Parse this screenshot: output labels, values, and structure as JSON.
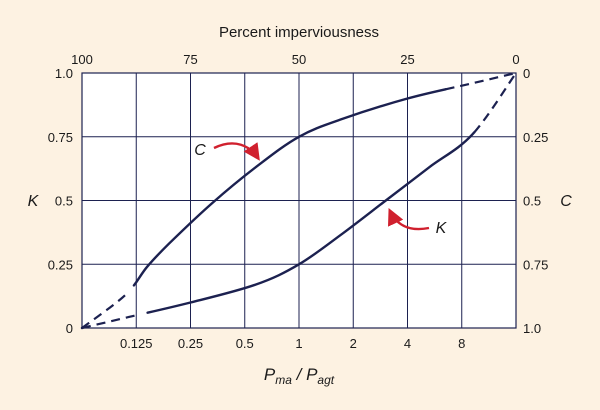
{
  "chart_data": {
    "type": "line",
    "top_axis_title": "Percent imperviousness",
    "top_ticks": [
      "100",
      "75",
      "50",
      "25",
      "0"
    ],
    "bottom_axis": {
      "label_main": "P",
      "label_sub1": "ma",
      "label_sep": " / P",
      "label_sub2": "agt",
      "ticks": [
        "0.125",
        "0.25",
        "0.5",
        "1",
        "2",
        "4",
        "8"
      ]
    },
    "left_axis_title": "K",
    "left_ticks": [
      "1.0",
      "0.75",
      "0.5",
      "0.25",
      "0"
    ],
    "right_axis_title": "C",
    "right_ticks": [
      "0",
      "0.25",
      "0.5",
      "0.75",
      "1.0"
    ],
    "grid": true,
    "series": [
      {
        "name": "C",
        "color": "#1c2150",
        "points": [
          {
            "imperv": 100,
            "k": 0.0
          },
          {
            "imperv": 90,
            "k": 0.13
          },
          {
            "imperv": 85,
            "k": 0.24
          },
          {
            "imperv": 80,
            "k": 0.33
          },
          {
            "imperv": 70,
            "k": 0.49
          },
          {
            "imperv": 60,
            "k": 0.63
          },
          {
            "imperv": 50,
            "k": 0.75
          },
          {
            "imperv": 40,
            "k": 0.82
          },
          {
            "imperv": 25,
            "k": 0.9
          },
          {
            "imperv": 10,
            "k": 0.96
          },
          {
            "imperv": 0,
            "k": 1.0
          }
        ]
      },
      {
        "name": "K",
        "color": "#1c2150",
        "points": [
          {
            "imperv": 100,
            "k": 0.0
          },
          {
            "imperv": 90,
            "k": 0.04
          },
          {
            "imperv": 75,
            "k": 0.1
          },
          {
            "imperv": 60,
            "k": 0.17
          },
          {
            "imperv": 50,
            "k": 0.25
          },
          {
            "imperv": 40,
            "k": 0.37
          },
          {
            "imperv": 30,
            "k": 0.5
          },
          {
            "imperv": 20,
            "k": 0.63
          },
          {
            "imperv": 10,
            "k": 0.76
          },
          {
            "imperv": 0,
            "k": 1.0
          }
        ]
      }
    ],
    "annotations": [
      {
        "text": "C",
        "target_series": "C"
      },
      {
        "text": "K",
        "target_series": "K"
      }
    ],
    "colors": {
      "background": "#fdf2e2",
      "plot_background": "#ffffff",
      "line": "#1c2150",
      "grid": "#1c2150",
      "arrow": "#d0202e"
    }
  }
}
